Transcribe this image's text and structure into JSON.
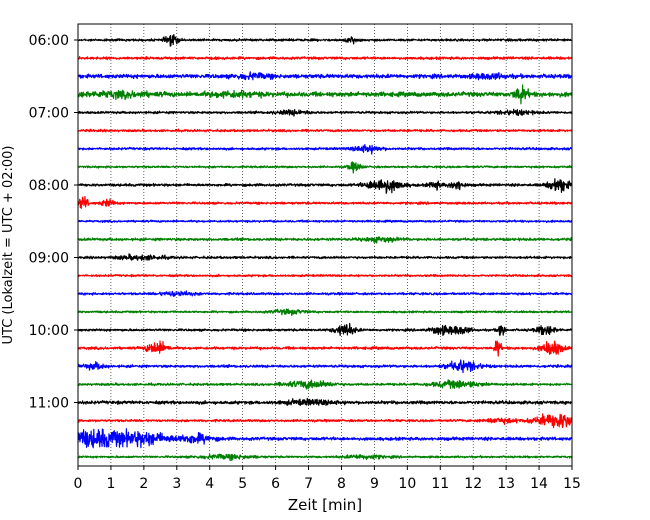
{
  "chart_data": {
    "type": "line",
    "title": "",
    "xlabel": "Zeit  [min]",
    "ylabel": "UTC (Lokalzeit = UTC + 02:00)",
    "xlim": [
      0,
      15
    ],
    "x_ticks": [
      0,
      1,
      2,
      3,
      4,
      5,
      6,
      7,
      8,
      9,
      10,
      11,
      12,
      13,
      14,
      15
    ],
    "grid": "vertical-dotted",
    "legend": "none",
    "y_ticks": [
      "06:00",
      "07:00",
      "08:00",
      "09:00",
      "10:00",
      "11:00"
    ],
    "trace_interval_min": 15,
    "color_cycle": [
      "#000000",
      "#ff0000",
      "#0000ff",
      "#008000"
    ],
    "traces": [
      {
        "start": "06:00",
        "noise": 0.8,
        "events": [
          [
            2.85,
            0.2,
            3.5
          ],
          [
            8.3,
            0.15,
            2.5
          ]
        ]
      },
      {
        "start": "06:15",
        "noise": 0.9,
        "events": []
      },
      {
        "start": "06:30",
        "noise": 1.4,
        "events": [
          [
            5.3,
            0.5,
            1.6
          ],
          [
            12.5,
            0.5,
            1.5
          ]
        ]
      },
      {
        "start": "06:45",
        "noise": 1.6,
        "events": [
          [
            1.2,
            1.0,
            1.5
          ],
          [
            4.7,
            0.8,
            1.5
          ],
          [
            13.45,
            0.2,
            5.0
          ]
        ]
      },
      {
        "start": "07:00",
        "noise": 0.8,
        "events": [
          [
            6.5,
            0.5,
            1.5
          ],
          [
            13.3,
            0.5,
            1.6
          ]
        ]
      },
      {
        "start": "07:15",
        "noise": 0.8,
        "events": []
      },
      {
        "start": "07:30",
        "noise": 0.8,
        "events": [
          [
            8.8,
            0.4,
            2.5
          ]
        ]
      },
      {
        "start": "07:45",
        "noise": 0.7,
        "events": [
          [
            8.4,
            0.2,
            3.0
          ]
        ]
      },
      {
        "start": "08:00",
        "noise": 0.9,
        "events": [
          [
            9.3,
            0.5,
            5.0
          ],
          [
            10.85,
            0.2,
            2.5
          ],
          [
            11.5,
            0.2,
            3.5
          ],
          [
            14.6,
            0.3,
            5.0
          ]
        ]
      },
      {
        "start": "08:15",
        "noise": 0.8,
        "events": [
          [
            0.15,
            0.15,
            4.5
          ],
          [
            0.9,
            0.2,
            2.5
          ]
        ]
      },
      {
        "start": "08:30",
        "noise": 0.7,
        "events": []
      },
      {
        "start": "08:45",
        "noise": 0.9,
        "events": [
          [
            9.2,
            0.5,
            1.5
          ]
        ]
      },
      {
        "start": "09:00",
        "noise": 0.8,
        "events": [
          [
            1.9,
            0.7,
            1.5
          ]
        ]
      },
      {
        "start": "09:15",
        "noise": 0.7,
        "events": []
      },
      {
        "start": "09:30",
        "noise": 0.8,
        "events": [
          [
            3.0,
            0.5,
            1.5
          ]
        ]
      },
      {
        "start": "09:45",
        "noise": 0.7,
        "events": [
          [
            6.4,
            0.5,
            1.5
          ]
        ]
      },
      {
        "start": "10:00",
        "noise": 0.8,
        "events": [
          [
            8.1,
            0.3,
            4.5
          ],
          [
            11.0,
            0.3,
            3.0
          ],
          [
            11.6,
            0.3,
            3.0
          ],
          [
            12.85,
            0.1,
            5.5
          ],
          [
            14.2,
            0.3,
            3.0
          ]
        ]
      },
      {
        "start": "10:15",
        "noise": 0.9,
        "events": [
          [
            2.4,
            0.3,
            4.5
          ],
          [
            12.75,
            0.08,
            8.0
          ],
          [
            14.4,
            0.3,
            5.5
          ]
        ]
      },
      {
        "start": "10:30",
        "noise": 0.9,
        "events": [
          [
            0.5,
            0.3,
            2.0
          ],
          [
            11.7,
            0.5,
            3.5
          ]
        ]
      },
      {
        "start": "10:45",
        "noise": 0.8,
        "events": [
          [
            7.0,
            0.7,
            2.5
          ],
          [
            11.5,
            0.7,
            2.5
          ]
        ]
      },
      {
        "start": "11:00",
        "noise": 1.1,
        "events": [
          [
            7.0,
            0.8,
            1.5
          ]
        ]
      },
      {
        "start": "11:15",
        "noise": 0.8,
        "events": [
          [
            14.6,
            0.7,
            5.0
          ],
          [
            12.8,
            0.5,
            1.5
          ]
        ]
      },
      {
        "start": "11:30",
        "noise": 1.1,
        "events": [
          [
            0.5,
            1.2,
            6.0
          ],
          [
            2.1,
            0.7,
            3.5
          ],
          [
            3.6,
            0.5,
            3.0
          ]
        ]
      },
      {
        "start": "11:45",
        "noise": 0.7,
        "events": [
          [
            4.5,
            0.8,
            1.5
          ],
          [
            8.7,
            0.6,
            1.4
          ]
        ]
      }
    ]
  }
}
